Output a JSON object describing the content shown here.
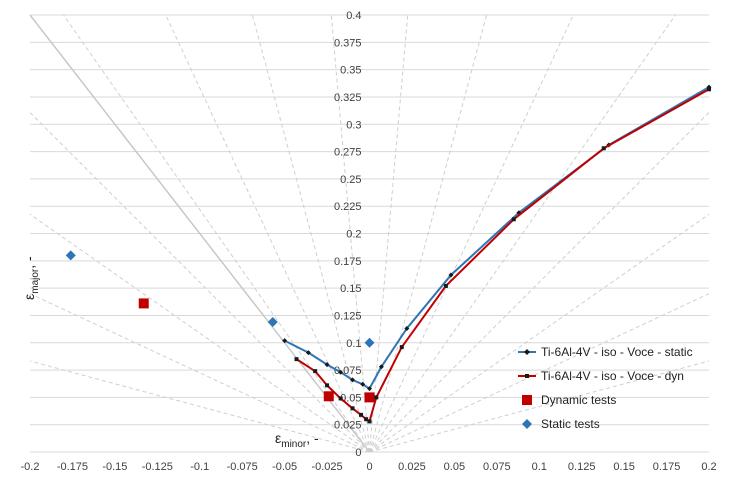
{
  "chart_data": {
    "type": "scatter",
    "title": "",
    "xlabel": {
      "main": "ε",
      "sub": "minor",
      "suffix": ", -"
    },
    "ylabel": {
      "main": "ε",
      "sub": "major",
      "suffix": ", -"
    },
    "xlim": [
      -0.2,
      0.2
    ],
    "ylim": [
      0,
      0.4
    ],
    "x_ticks": [
      "-0.2",
      "-0.175",
      "-0.15",
      "-0.125",
      "-0.1",
      "-0.075",
      "-0.05",
      "-0.025",
      "0",
      "0.025",
      "0.05",
      "0.075",
      "0.1",
      "0.125",
      "0.15",
      "0.175",
      "0.2"
    ],
    "y_ticks": [
      "0",
      "0.025",
      "0.05",
      "0.075",
      "0.1",
      "0.125",
      "0.15",
      "0.175",
      "0.2",
      "0.225",
      "0.25",
      "0.275",
      "0.3",
      "0.325",
      "0.35",
      "0.375",
      "0.4"
    ],
    "grid": true,
    "legend_position": "right",
    "series": [
      {
        "name": "Ti-6Al-4V - iso - Voce - static",
        "style": "line-diamond",
        "color": "#2e75b6",
        "points": [
          [
            -0.05,
            0.102
          ],
          [
            -0.036,
            0.091
          ],
          [
            -0.025,
            0.08
          ],
          [
            -0.017,
            0.073
          ],
          [
            -0.01,
            0.066
          ],
          [
            -0.004,
            0.062
          ],
          [
            0.0,
            0.058
          ],
          [
            0.007,
            0.078
          ],
          [
            0.022,
            0.113
          ],
          [
            0.048,
            0.162
          ],
          [
            0.088,
            0.219
          ],
          [
            0.141,
            0.281
          ],
          [
            0.2,
            0.334
          ]
        ]
      },
      {
        "name": "Ti-6Al-4V - iso - Voce - dyn",
        "style": "line-square",
        "color": "#c00000",
        "points": [
          [
            -0.043,
            0.085
          ],
          [
            -0.032,
            0.074
          ],
          [
            -0.025,
            0.061
          ],
          [
            -0.017,
            0.049
          ],
          [
            -0.01,
            0.04
          ],
          [
            -0.005,
            0.034
          ],
          [
            -0.002,
            0.03
          ],
          [
            0.0,
            0.028
          ],
          [
            0.004,
            0.05
          ],
          [
            0.019,
            0.096
          ],
          [
            0.045,
            0.152
          ],
          [
            0.085,
            0.213
          ],
          [
            0.138,
            0.278
          ],
          [
            0.2,
            0.332
          ]
        ]
      },
      {
        "name": "Dynamic tests",
        "style": "square",
        "color": "#c00000",
        "points": [
          [
            -0.133,
            0.136
          ],
          [
            -0.024,
            0.051
          ],
          [
            0.0,
            0.05
          ]
        ]
      },
      {
        "name": "Static tests",
        "style": "diamond",
        "color": "#2e75b6",
        "points": [
          [
            -0.176,
            0.18
          ],
          [
            -0.057,
            0.119
          ],
          [
            0.0,
            0.1
          ]
        ]
      }
    ]
  }
}
